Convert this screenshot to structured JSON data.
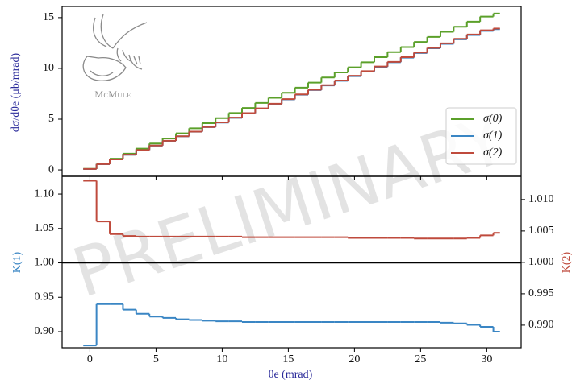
{
  "chart_data": {
    "type": "step",
    "xlabel": "θe (mrad)",
    "xlim": [
      -2.1,
      32.6
    ],
    "xticks": [
      0,
      5,
      10,
      15,
      20,
      25,
      30
    ],
    "bins": [
      -0.5,
      0.5,
      1.5,
      2.5,
      3.5,
      4.5,
      5.5,
      6.5,
      7.5,
      8.5,
      9.5,
      10.5,
      11.5,
      12.5,
      13.5,
      14.5,
      15.5,
      16.5,
      17.5,
      18.5,
      19.5,
      20.5,
      21.5,
      22.5,
      23.5,
      24.5,
      25.5,
      26.5,
      27.5,
      28.5,
      29.5,
      30.5,
      31
    ],
    "watermark": "PRELIMINARY",
    "logo": "McMule",
    "panels": [
      {
        "ylabel": "dσ/dθe (μb/mrad)",
        "ylim": [
          -0.63,
          16.1
        ],
        "yticks": [
          0,
          5,
          10,
          15
        ],
        "legend": "right",
        "series": [
          {
            "name": "σ(0)",
            "color": "#5ba02a",
            "values": [
              0.1,
              0.6,
              1.1,
              1.6,
              2.1,
              2.6,
              3.1,
              3.6,
              4.1,
              4.6,
              5.1,
              5.6,
              6.1,
              6.6,
              7.1,
              7.6,
              8.1,
              8.6,
              9.1,
              9.6,
              10.1,
              10.6,
              11.1,
              11.6,
              12.1,
              12.6,
              13.1,
              13.6,
              14.1,
              14.6,
              15.1,
              15.4
            ]
          },
          {
            "name": "σ(1)",
            "color": "#3a86c4",
            "values": [
              0.088,
              0.564,
              1.034,
              1.491,
              1.945,
              2.397,
              2.852,
              3.305,
              3.76,
              4.214,
              4.667,
              5.124,
              5.575,
              6.032,
              6.489,
              6.946,
              7.403,
              7.86,
              8.317,
              8.774,
              9.231,
              9.688,
              10.145,
              10.602,
              11.059,
              11.516,
              11.973,
              12.417,
              12.859,
              13.286,
              13.696,
              13.86
            ]
          },
          {
            "name": "σ(2)",
            "color": "#bf4a3c",
            "values": [
              0.089,
              0.568,
              1.039,
              1.497,
              1.953,
              2.407,
              2.864,
              3.319,
              3.775,
              4.231,
              4.686,
              5.145,
              5.597,
              6.056,
              6.515,
              6.974,
              7.433,
              7.891,
              8.35,
              8.809,
              9.267,
              9.726,
              10.185,
              10.643,
              11.102,
              11.56,
              12.018,
              12.464,
              12.908,
              13.338,
              13.755,
              13.925
            ]
          }
        ]
      },
      {
        "ylabel": "K(1)",
        "y2label": "K(2)",
        "ylim": [
          0.8766,
          1.1258
        ],
        "yticks": [
          {
            "value": 0.9,
            "label": "0.90"
          },
          0.95,
          {
            "value": 1.0,
            "label": "1.00"
          },
          1.05,
          {
            "value": 1.1,
            "label": "1.10"
          }
        ],
        "y2lim": [
          0.9864,
          1.0137
        ],
        "y2ticks": [
          {
            "value": 0.99,
            "label": "0.990"
          },
          0.995,
          {
            "value": 1.0,
            "label": "1.000"
          },
          1.005,
          {
            "value": 1.01,
            "label": "1.010"
          }
        ],
        "series": [
          {
            "name": "K(1)",
            "color": "#3a86c4",
            "values": [
              0.88,
              0.94,
              0.94,
              0.932,
              0.926,
              0.922,
              0.92,
              0.918,
              0.917,
              0.916,
              0.915,
              0.915,
              0.914,
              0.914,
              0.914,
              0.914,
              0.914,
              0.914,
              0.914,
              0.914,
              0.914,
              0.914,
              0.914,
              0.914,
              0.914,
              0.914,
              0.914,
              0.913,
              0.912,
              0.91,
              0.907,
              0.9
            ]
          },
          {
            "name": "K(2)",
            "axis": "y2",
            "color": "#bf4a3c",
            "values": [
              1.013,
              1.0065,
              1.0045,
              1.0042,
              1.0041,
              1.0041,
              1.0041,
              1.0041,
              1.0041,
              1.0041,
              1.0041,
              1.0041,
              1.004,
              1.004,
              1.004,
              1.004,
              1.004,
              1.004,
              1.004,
              1.004,
              1.0039,
              1.0039,
              1.0039,
              1.0039,
              1.0039,
              1.0038,
              1.0038,
              1.0038,
              1.0038,
              1.0039,
              1.0043,
              1.0047
            ]
          }
        ]
      }
    ]
  }
}
